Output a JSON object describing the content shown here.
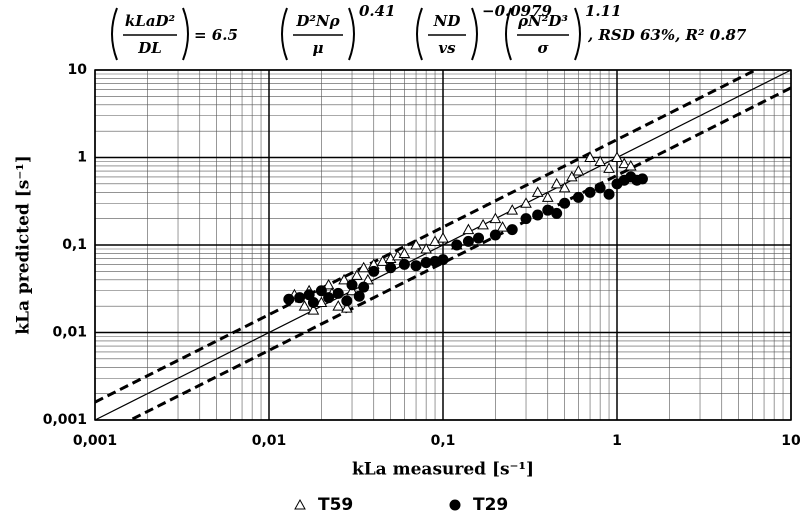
{
  "chart_data": {
    "type": "scatter",
    "equation": {
      "lhs": {
        "num": "kLaD²",
        "den": "DL"
      },
      "coef": "= 6.5",
      "terms": [
        {
          "num": "D²Nρ",
          "den": "μ",
          "exp": "0.41"
        },
        {
          "num": "ND",
          "den": "vs",
          "exp": "−0.0979"
        },
        {
          "num": "ρN²D³",
          "den": "σ",
          "exp": "1.11"
        }
      ],
      "stats": ", RSD 63%, R² 0.87"
    },
    "x_label": "kLa measured [s⁻¹]",
    "y_label": "kLa predicted [s⁻¹]",
    "log_x": true,
    "log_y": true,
    "xlim": [
      0.001,
      10
    ],
    "ylim": [
      0.001,
      10
    ],
    "xticks": [
      {
        "value": 0.001,
        "label": "0,001"
      },
      {
        "value": 0.01,
        "label": "0,01"
      },
      {
        "value": 0.1,
        "label": "0,1"
      },
      1,
      10
    ],
    "yticks": [
      {
        "value": 0.001,
        "label": "0,001"
      },
      {
        "value": 0.01,
        "label": "0,01"
      },
      {
        "value": 0.1,
        "label": "0,1"
      },
      1,
      10
    ],
    "grid": true,
    "minor_grid": true,
    "legend": "bottom",
    "reference_lines": [
      {
        "factor": 1,
        "style": "solid"
      },
      {
        "factor": 1.6,
        "style": "dashed"
      },
      {
        "factor": 0.625,
        "style": "dashed"
      }
    ],
    "series": [
      {
        "name": "T59",
        "marker": "triangle",
        "color": "#000",
        "x": [
          0.014,
          0.016,
          0.017,
          0.018,
          0.02,
          0.022,
          0.023,
          0.025,
          0.027,
          0.028,
          0.03,
          0.032,
          0.035,
          0.037,
          0.04,
          0.045,
          0.05,
          0.055,
          0.06,
          0.07,
          0.08,
          0.09,
          0.1,
          0.12,
          0.14,
          0.17,
          0.2,
          0.22,
          0.25,
          0.3,
          0.35,
          0.4,
          0.45,
          0.5,
          0.55,
          0.6,
          0.7,
          0.8,
          0.9,
          1.0,
          1.1,
          1.2
        ],
        "values": [
          0.027,
          0.02,
          0.03,
          0.018,
          0.022,
          0.035,
          0.028,
          0.02,
          0.04,
          0.019,
          0.03,
          0.045,
          0.055,
          0.04,
          0.06,
          0.065,
          0.07,
          0.075,
          0.08,
          0.1,
          0.09,
          0.11,
          0.12,
          0.1,
          0.15,
          0.17,
          0.2,
          0.16,
          0.25,
          0.3,
          0.4,
          0.35,
          0.5,
          0.45,
          0.6,
          0.7,
          1.0,
          0.9,
          0.75,
          1.0,
          0.85,
          0.8
        ]
      },
      {
        "name": "T29",
        "marker": "circle",
        "color": "#000",
        "x": [
          0.013,
          0.015,
          0.017,
          0.018,
          0.02,
          0.022,
          0.025,
          0.028,
          0.03,
          0.033,
          0.035,
          0.04,
          0.05,
          0.06,
          0.07,
          0.08,
          0.09,
          0.1,
          0.12,
          0.14,
          0.16,
          0.2,
          0.25,
          0.3,
          0.35,
          0.4,
          0.45,
          0.5,
          0.6,
          0.7,
          0.8,
          0.9,
          1.0,
          1.1,
          1.2,
          1.3,
          1.4
        ],
        "values": [
          0.024,
          0.025,
          0.027,
          0.022,
          0.03,
          0.025,
          0.028,
          0.023,
          0.035,
          0.026,
          0.033,
          0.05,
          0.055,
          0.06,
          0.058,
          0.063,
          0.065,
          0.068,
          0.1,
          0.11,
          0.12,
          0.13,
          0.15,
          0.2,
          0.22,
          0.25,
          0.23,
          0.3,
          0.35,
          0.4,
          0.45,
          0.38,
          0.5,
          0.55,
          0.6,
          0.55,
          0.57
        ]
      }
    ]
  }
}
